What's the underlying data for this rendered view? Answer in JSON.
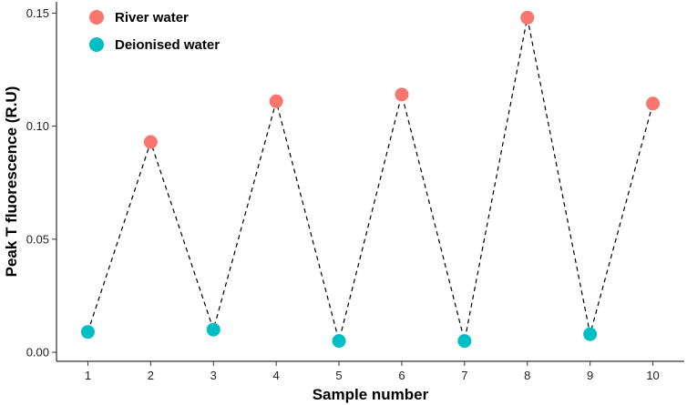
{
  "chart_data": {
    "type": "scatter",
    "title": "",
    "xlabel": "Sample number",
    "ylabel": "Peak T fluorescence (R.U)",
    "x": [
      1,
      2,
      3,
      4,
      5,
      6,
      7,
      8,
      9,
      10
    ],
    "x_tick_labels": [
      "1",
      "2",
      "3",
      "4",
      "5",
      "6",
      "7",
      "8",
      "9",
      "10"
    ],
    "y_ticks": [
      0.0,
      0.05,
      0.1,
      0.15
    ],
    "y_tick_labels": [
      "0.00",
      "0.05",
      "0.10",
      "0.15"
    ],
    "xlim": [
      0.5,
      10.5
    ],
    "ylim": [
      -0.004,
      0.155
    ],
    "grid": false,
    "legend_position": "top-left",
    "connecting_line": "dashed",
    "series": [
      {
        "name": "River water",
        "color": "#F8766D",
        "x": [
          2,
          4,
          6,
          8,
          10
        ],
        "y": [
          0.093,
          0.111,
          0.114,
          0.148,
          0.11
        ]
      },
      {
        "name": "Deionised water",
        "color": "#00BFC4",
        "x": [
          1,
          3,
          5,
          7,
          9
        ],
        "y": [
          0.009,
          0.01,
          0.005,
          0.005,
          0.008
        ]
      }
    ]
  }
}
